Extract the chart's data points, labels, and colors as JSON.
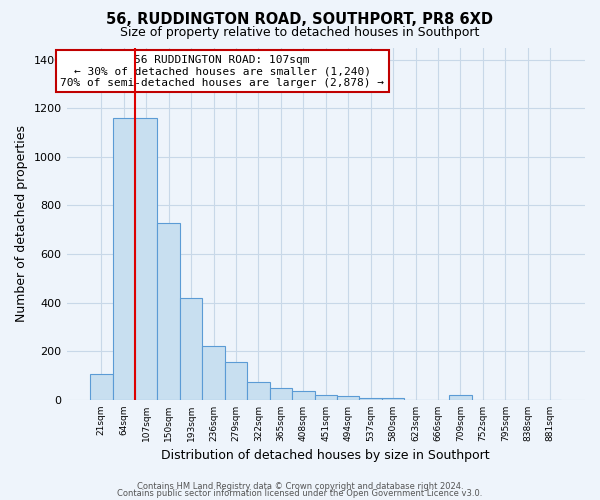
{
  "title": "56, RUDDINGTON ROAD, SOUTHPORT, PR8 6XD",
  "subtitle": "Size of property relative to detached houses in Southport",
  "xlabel": "Distribution of detached houses by size in Southport",
  "ylabel": "Number of detached properties",
  "categories": [
    "21sqm",
    "64sqm",
    "107sqm",
    "150sqm",
    "193sqm",
    "236sqm",
    "279sqm",
    "322sqm",
    "365sqm",
    "408sqm",
    "451sqm",
    "494sqm",
    "537sqm",
    "580sqm",
    "623sqm",
    "666sqm",
    "709sqm",
    "752sqm",
    "795sqm",
    "838sqm",
    "881sqm"
  ],
  "values": [
    107,
    1160,
    1160,
    730,
    420,
    220,
    155,
    75,
    50,
    35,
    20,
    15,
    10,
    10,
    0,
    0,
    20,
    0,
    0,
    0,
    0
  ],
  "highlight_index": 2,
  "redline_color": "#dd0000",
  "bar_fill_color": "#c8dff0",
  "bar_edge_color": "#5b9bd5",
  "annotation_box_color": "#ffffff",
  "annotation_box_edge": "#c00000",
  "annotation_line1": "56 RUDDINGTON ROAD: 107sqm",
  "annotation_line2": "← 30% of detached houses are smaller (1,240)",
  "annotation_line3": "70% of semi-detached houses are larger (2,878) →",
  "ylim": [
    0,
    1450
  ],
  "yticks": [
    0,
    200,
    400,
    600,
    800,
    1000,
    1200,
    1400
  ],
  "footer1": "Contains HM Land Registry data © Crown copyright and database right 2024.",
  "footer2": "Contains public sector information licensed under the Open Government Licence v3.0.",
  "background_color": "#eef4fb",
  "grid_color": "#c8d8e8",
  "title_fontsize": 10.5,
  "subtitle_fontsize": 9,
  "axis_label_fontsize": 9,
  "tick_fontsize": 8,
  "annotation_fontsize": 8
}
